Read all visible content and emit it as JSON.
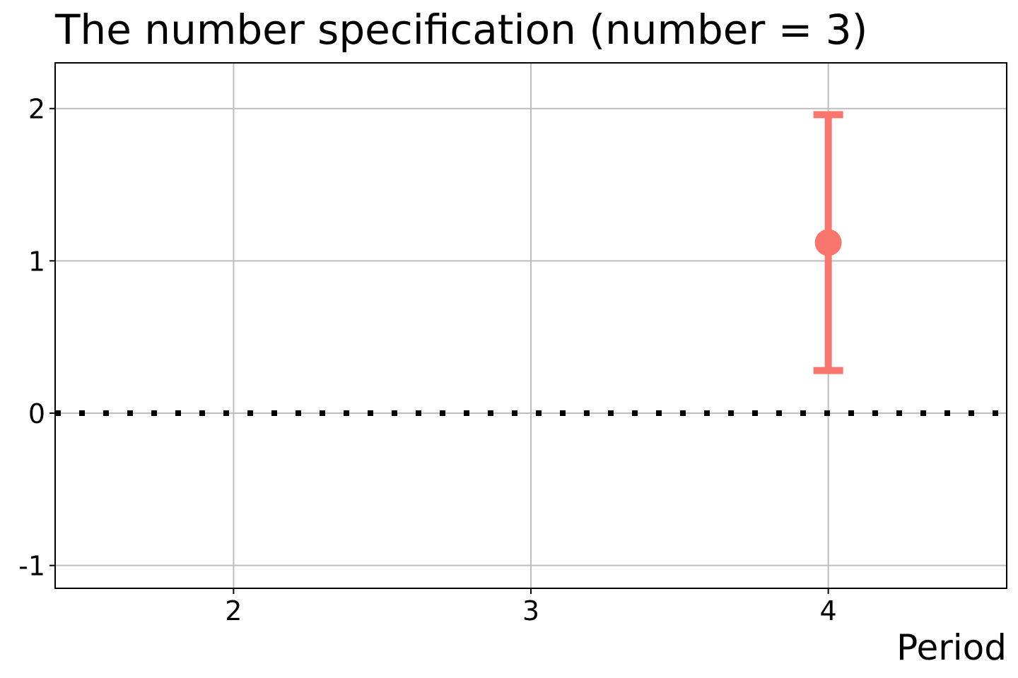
{
  "chart_data": {
    "type": "scatter",
    "title": "The number specification (number = 3)",
    "xlabel": "Period",
    "ylabel": "",
    "xlim": [
      1.4,
      4.6
    ],
    "ylim": [
      -1.15,
      2.3
    ],
    "x_ticks": [
      2,
      3,
      4
    ],
    "y_ticks": [
      -1,
      0,
      1,
      2
    ],
    "grid": true,
    "reference_line": {
      "y": 0,
      "style": "dotted",
      "color": "#000000"
    },
    "series": [
      {
        "color": "#F8766D",
        "points": [
          {
            "x": 4,
            "y": 1.12,
            "lower": 0.28,
            "upper": 1.96
          }
        ]
      }
    ]
  }
}
